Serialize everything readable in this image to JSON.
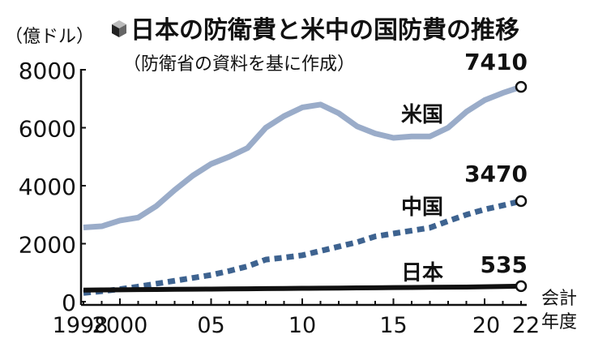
{
  "chart_data": {
    "type": "line",
    "title": "日本の防衛費と米中の国防費の推移",
    "subtitle": "（防衛省の資料を基に作成）",
    "ylabel": "（億ドル）",
    "xlabel": "会計年度",
    "xlabel_lines": [
      "会計",
      "年度"
    ],
    "ylim": [
      0,
      8000
    ],
    "xlim": [
      1998,
      2022
    ],
    "y_ticks": [
      0,
      2000,
      4000,
      6000,
      8000
    ],
    "y_tick_labels": [
      "0",
      "2000",
      "4000",
      "6000",
      "8000"
    ],
    "x_ticks": [
      1998,
      2000,
      2005,
      2010,
      2015,
      2020,
      2022
    ],
    "x_tick_labels": [
      "1998",
      "2000",
      "05",
      "10",
      "15",
      "20",
      "22"
    ],
    "x": [
      1998,
      1999,
      2000,
      2001,
      2002,
      2003,
      2004,
      2005,
      2006,
      2007,
      2008,
      2009,
      2010,
      2011,
      2012,
      2013,
      2014,
      2015,
      2016,
      2017,
      2018,
      2019,
      2020,
      2021,
      2022
    ],
    "series": [
      {
        "name": "米国",
        "color": "#9aacc9",
        "style": "solid",
        "end_label": "7410",
        "values": [
          2560,
          2600,
          2800,
          2900,
          3300,
          3850,
          4350,
          4750,
          5000,
          5300,
          6000,
          6400,
          6700,
          6800,
          6500,
          6050,
          5800,
          5650,
          5700,
          5700,
          6000,
          6550,
          6950,
          7200,
          7410
        ]
      },
      {
        "name": "中国",
        "color": "#3e6390",
        "style": "dashed",
        "end_label": "3470",
        "values": [
          300,
          360,
          430,
          520,
          620,
          720,
          820,
          920,
          1060,
          1220,
          1450,
          1520,
          1600,
          1750,
          1900,
          2050,
          2250,
          2350,
          2450,
          2550,
          2780,
          3000,
          3180,
          3320,
          3470
        ]
      },
      {
        "name": "日本",
        "color": "#111111",
        "style": "solid",
        "end_label": "535",
        "values": [
          400,
          405,
          410,
          415,
          420,
          425,
          430,
          435,
          440,
          445,
          450,
          455,
          460,
          465,
          470,
          475,
          480,
          485,
          490,
          495,
          500,
          505,
          515,
          525,
          535
        ]
      }
    ]
  }
}
